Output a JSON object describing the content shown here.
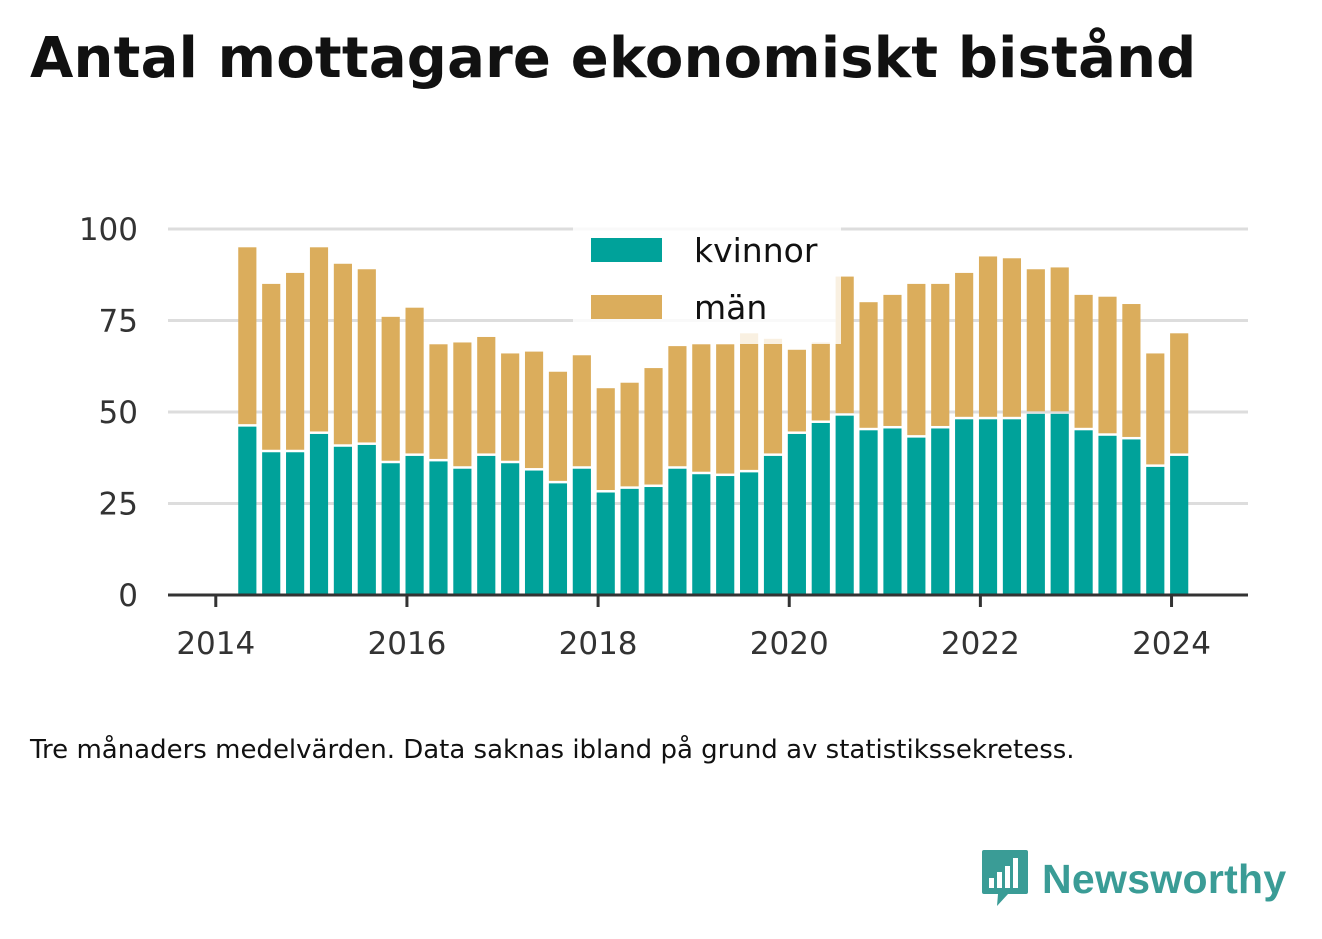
{
  "title": "Antal mottagare ekonomiskt bistånd",
  "caption": "Tre månaders medelvärden. Data saknas ibland på grund av statistikssekretess.",
  "brand": {
    "name": "Newsworthy",
    "color": "#3a9c96",
    "logo_icon": "newsworthy-bar-chart-icon"
  },
  "colors": {
    "kvinnor": "#00a29a",
    "man": "#dbad5c",
    "grid": "#dddddd",
    "axis": "#333333"
  },
  "chart_data": {
    "type": "bar",
    "stacked": true,
    "x_ticks": [
      "2014",
      "2016",
      "2018",
      "2020",
      "2022",
      "2024"
    ],
    "x_tick_values": [
      2014,
      2016,
      2018,
      2020,
      2022,
      2024
    ],
    "x_range": [
      2013.5,
      2024.8
    ],
    "y_ticks": [
      "0",
      "25",
      "50",
      "75",
      "100"
    ],
    "y_tick_values": [
      0,
      25,
      50,
      75,
      100
    ],
    "ylim": [
      0,
      100
    ],
    "grid": true,
    "legend_position": "top-center",
    "x": [
      2014.33,
      2014.58,
      2014.83,
      2015.08,
      2015.33,
      2015.58,
      2015.83,
      2016.08,
      2016.33,
      2016.58,
      2016.83,
      2017.08,
      2017.33,
      2017.58,
      2017.83,
      2018.08,
      2018.33,
      2018.58,
      2018.83,
      2019.08,
      2019.33,
      2019.58,
      2019.83,
      2020.08,
      2020.33,
      2020.58,
      2020.83,
      2021.08,
      2021.33,
      2021.58,
      2021.83,
      2022.08,
      2022.33,
      2022.58,
      2022.83,
      2023.08,
      2023.33,
      2023.58,
      2023.83,
      2024.08
    ],
    "series": [
      {
        "name": "kvinnor",
        "color": "#00a29a",
        "values": [
          46,
          39,
          39,
          44,
          40.5,
          41,
          36,
          38,
          36.5,
          34.5,
          38,
          36,
          34,
          30.5,
          34.5,
          28,
          29,
          29.5,
          34.5,
          33,
          32.5,
          33.5,
          38,
          44,
          47,
          49,
          45,
          45.5,
          43,
          45.5,
          48,
          48,
          48,
          49.5,
          49.5,
          45,
          43.5,
          42.5,
          35,
          38
        ]
      },
      {
        "name": "män",
        "color": "#dbad5c",
        "values": [
          49,
          46,
          49,
          51,
          50,
          48,
          40,
          40.5,
          32,
          34.5,
          32.5,
          30,
          32.5,
          30.5,
          31,
          28.5,
          29,
          32.5,
          33.5,
          35.5,
          36,
          38,
          32,
          23,
          22,
          38,
          35,
          36.5,
          42,
          39.5,
          40,
          44.5,
          44,
          39.5,
          40,
          37,
          38,
          37,
          31,
          33.5
        ]
      }
    ]
  }
}
